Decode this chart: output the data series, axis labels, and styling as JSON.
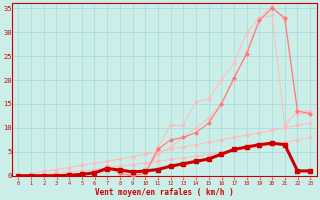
{
  "bg_color": "#cceee8",
  "grid_color": "#aadddd",
  "line_color_dark": "#cc0000",
  "line_color_mid": "#ff7777",
  "line_color_light": "#ffbbbb",
  "xlabel": "Vent moyen/en rafales ( km/h )",
  "ylabel_ticks": [
    0,
    5,
    10,
    15,
    20,
    25,
    30,
    35
  ],
  "xlabel_ticks": [
    0,
    1,
    2,
    3,
    4,
    5,
    6,
    7,
    8,
    9,
    10,
    11,
    12,
    13,
    14,
    15,
    16,
    17,
    18,
    19,
    20,
    21,
    22,
    23
  ],
  "xmin": -0.5,
  "xmax": 23.5,
  "ymin": 0,
  "ymax": 36,
  "series_light1_x": [
    0,
    1,
    2,
    3,
    4,
    5,
    6,
    7,
    8,
    9,
    10,
    11,
    12,
    13,
    14,
    15,
    16,
    17,
    18,
    19,
    20,
    21,
    22,
    23
  ],
  "series_light1_y": [
    0.0,
    0.0,
    0.0,
    0.0,
    0.0,
    0.0,
    0.5,
    1.5,
    1.2,
    0.5,
    0.8,
    4.5,
    6.0,
    8.0,
    10.0,
    12.0,
    15.0,
    20.0,
    26.0,
    33.0,
    35.5,
    32.5,
    13.0,
    13.0
  ],
  "series_light2_x": [
    0,
    1,
    2,
    3,
    4,
    5,
    6,
    7,
    8,
    9,
    10,
    11,
    12,
    13,
    14,
    15,
    16,
    17,
    18,
    19,
    20,
    21,
    22,
    23
  ],
  "series_light2_y": [
    0.0,
    0.0,
    0.0,
    0.0,
    0.0,
    0.0,
    0.5,
    2.0,
    0.5,
    0.0,
    0.5,
    6.0,
    10.5,
    10.5,
    15.5,
    16.0,
    20.0,
    23.5,
    30.0,
    33.0,
    33.5,
    10.5,
    13.5,
    13.5
  ],
  "series_mid_x": [
    0,
    1,
    2,
    3,
    4,
    5,
    6,
    7,
    8,
    9,
    10,
    11,
    12,
    13,
    14,
    15,
    16,
    17,
    18,
    19,
    20,
    21,
    22,
    23
  ],
  "series_mid_y": [
    0.0,
    0.0,
    0.0,
    0.0,
    0.0,
    0.2,
    0.7,
    1.8,
    0.5,
    0.0,
    0.5,
    5.5,
    7.5,
    8.0,
    9.0,
    11.0,
    15.0,
    20.5,
    25.5,
    32.5,
    35.0,
    33.0,
    13.5,
    13.0
  ],
  "series_dark_thick_x": [
    0,
    1,
    2,
    3,
    4,
    5,
    6,
    7,
    8,
    9,
    10,
    11,
    12,
    13,
    14,
    15,
    16,
    17,
    18,
    19,
    20,
    21,
    22,
    23
  ],
  "series_dark_thick_y": [
    0.0,
    0.0,
    0.0,
    0.0,
    0.1,
    0.3,
    0.6,
    1.5,
    1.2,
    0.8,
    1.0,
    1.3,
    2.0,
    2.5,
    3.0,
    3.5,
    4.5,
    5.5,
    6.0,
    6.5,
    6.8,
    6.5,
    1.0,
    1.0
  ],
  "series_diag_x": [
    0,
    1,
    2,
    3,
    4,
    5,
    6,
    7,
    8,
    9,
    10,
    11,
    12,
    13,
    14,
    15,
    16,
    17,
    18,
    19,
    20,
    21,
    22,
    23
  ],
  "series_diag_y": [
    0.0,
    0.4,
    0.9,
    1.3,
    1.7,
    2.2,
    2.6,
    3.0,
    3.5,
    4.0,
    4.5,
    5.0,
    5.5,
    6.0,
    6.5,
    7.0,
    7.5,
    8.0,
    8.5,
    9.0,
    9.5,
    10.0,
    10.5,
    11.0
  ],
  "series_diag2_x": [
    0,
    1,
    2,
    3,
    4,
    5,
    6,
    7,
    8,
    9,
    10,
    11,
    12,
    13,
    14,
    15,
    16,
    17,
    18,
    19,
    20,
    21,
    22,
    23
  ],
  "series_diag2_y": [
    0.0,
    0.0,
    0.2,
    0.5,
    0.7,
    1.0,
    1.3,
    1.7,
    2.0,
    2.3,
    2.7,
    3.0,
    3.4,
    3.7,
    4.1,
    4.5,
    4.9,
    5.3,
    5.7,
    6.1,
    6.5,
    7.0,
    7.5,
    8.0
  ]
}
